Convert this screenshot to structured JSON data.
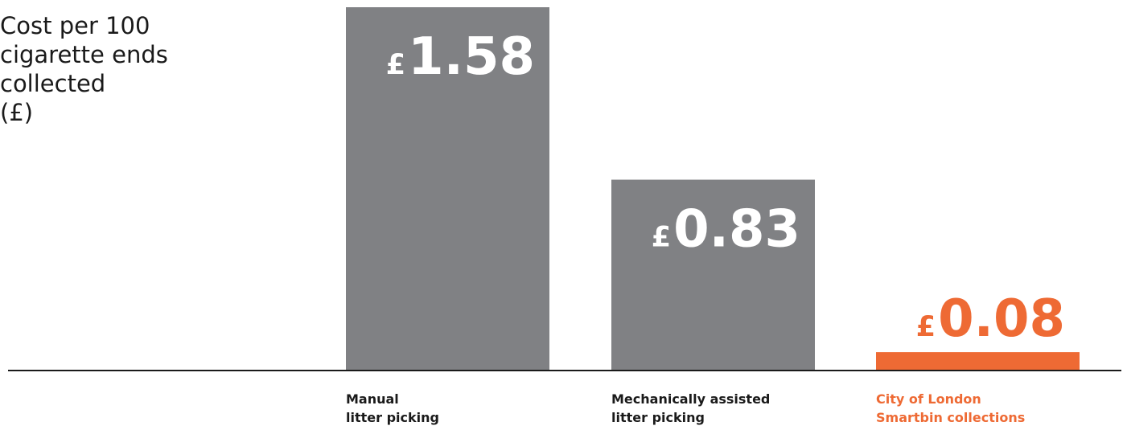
{
  "chart_data": {
    "type": "bar",
    "title": "",
    "ylabel_lines": [
      "Cost per 100",
      "cigarette ends",
      "collected",
      "(£)"
    ],
    "xlabel": "",
    "currency_symbol": "£",
    "categories": [
      {
        "lines": [
          "Manual",
          "litter picking"
        ]
      },
      {
        "lines": [
          "Mechanically assisted",
          "litter picking"
        ]
      },
      {
        "lines": [
          "City of London",
          "Smartbin collections"
        ]
      }
    ],
    "values": [
      1.58,
      0.83,
      0.08
    ],
    "value_labels": [
      "1.58",
      "0.83",
      "0.08"
    ],
    "ylim": [
      0,
      1.58
    ],
    "grid": false,
    "colors": {
      "default_bar": "#808184",
      "highlight_bar": "#ee6a34",
      "default_label": "#1a1a1a",
      "value_on_bar": "#ffffff",
      "axis": "#1a1a1a"
    },
    "highlight_index": 2
  }
}
